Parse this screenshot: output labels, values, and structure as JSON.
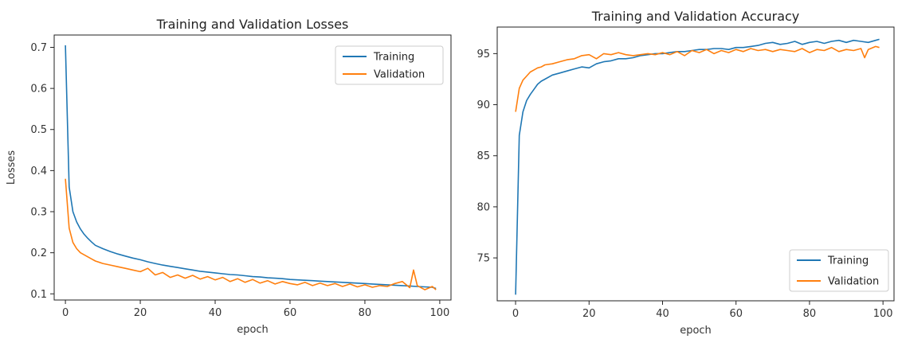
{
  "chart_data": [
    {
      "type": "line",
      "title": "Training and Validation Losses",
      "xlabel": "epoch",
      "ylabel": "Losses",
      "xlim": [
        -3,
        103
      ],
      "ylim": [
        0.085,
        0.73
      ],
      "xticks": [
        0,
        20,
        40,
        60,
        80,
        100
      ],
      "yticks": [
        0.1,
        0.2,
        0.3,
        0.4,
        0.5,
        0.6,
        0.7
      ],
      "ytick_labels": [
        "0.1",
        "0.2",
        "0.3",
        "0.4",
        "0.5",
        "0.6",
        "0.7"
      ],
      "legend_position": "top-right",
      "series": [
        {
          "name": "Training",
          "color": "#1f77b4",
          "x": [
            0,
            1,
            2,
            3,
            4,
            5,
            6,
            7,
            8,
            10,
            12,
            14,
            16,
            18,
            20,
            22,
            24,
            26,
            28,
            30,
            32,
            34,
            36,
            38,
            40,
            42,
            44,
            46,
            48,
            50,
            52,
            54,
            56,
            58,
            60,
            62,
            64,
            66,
            68,
            70,
            72,
            74,
            76,
            78,
            80,
            82,
            84,
            86,
            88,
            90,
            92,
            94,
            96,
            98,
            99
          ],
          "y": [
            0.705,
            0.36,
            0.3,
            0.275,
            0.258,
            0.245,
            0.235,
            0.226,
            0.218,
            0.21,
            0.203,
            0.197,
            0.192,
            0.187,
            0.183,
            0.178,
            0.174,
            0.17,
            0.167,
            0.164,
            0.161,
            0.158,
            0.155,
            0.153,
            0.151,
            0.149,
            0.147,
            0.146,
            0.144,
            0.142,
            0.141,
            0.139,
            0.138,
            0.137,
            0.135,
            0.134,
            0.133,
            0.132,
            0.131,
            0.13,
            0.129,
            0.128,
            0.127,
            0.126,
            0.125,
            0.124,
            0.123,
            0.122,
            0.121,
            0.12,
            0.119,
            0.118,
            0.117,
            0.116,
            0.113
          ]
        },
        {
          "name": "Validation",
          "color": "#ff7f0e",
          "x": [
            0,
            1,
            2,
            3,
            4,
            5,
            6,
            7,
            8,
            10,
            12,
            14,
            16,
            18,
            20,
            22,
            24,
            26,
            28,
            30,
            32,
            34,
            36,
            38,
            40,
            42,
            44,
            46,
            48,
            50,
            52,
            54,
            56,
            58,
            60,
            62,
            64,
            66,
            68,
            70,
            72,
            74,
            76,
            78,
            80,
            82,
            84,
            86,
            88,
            90,
            92,
            93,
            94,
            96,
            98,
            99
          ],
          "y": [
            0.38,
            0.26,
            0.225,
            0.21,
            0.2,
            0.195,
            0.19,
            0.185,
            0.18,
            0.174,
            0.17,
            0.166,
            0.162,
            0.158,
            0.154,
            0.162,
            0.146,
            0.152,
            0.14,
            0.146,
            0.138,
            0.145,
            0.136,
            0.142,
            0.134,
            0.14,
            0.13,
            0.137,
            0.128,
            0.135,
            0.126,
            0.132,
            0.124,
            0.13,
            0.125,
            0.122,
            0.128,
            0.12,
            0.126,
            0.12,
            0.125,
            0.118,
            0.124,
            0.117,
            0.122,
            0.116,
            0.12,
            0.118,
            0.125,
            0.13,
            0.115,
            0.158,
            0.12,
            0.11,
            0.118,
            0.11
          ]
        }
      ]
    },
    {
      "type": "line",
      "title": "Training and Validation Accuracy",
      "xlabel": "epoch",
      "ylabel": "",
      "xlim": [
        -5,
        103
      ],
      "ylim": [
        70.8,
        97.6
      ],
      "xticks": [
        0,
        20,
        40,
        60,
        80,
        100
      ],
      "yticks": [
        75,
        80,
        85,
        90,
        95
      ],
      "ytick_labels": [
        "75",
        "80",
        "85",
        "90",
        "95"
      ],
      "legend_position": "bottom-right",
      "series": [
        {
          "name": "Training",
          "color": "#1f77b4",
          "x": [
            0,
            1,
            2,
            3,
            4,
            5,
            6,
            7,
            8,
            10,
            12,
            14,
            16,
            18,
            20,
            22,
            24,
            26,
            28,
            30,
            32,
            34,
            36,
            38,
            40,
            42,
            44,
            46,
            48,
            50,
            52,
            54,
            56,
            58,
            60,
            62,
            64,
            66,
            68,
            70,
            72,
            74,
            76,
            78,
            80,
            82,
            84,
            86,
            88,
            90,
            92,
            94,
            96,
            98,
            99
          ],
          "y": [
            71.4,
            87.0,
            89.3,
            90.4,
            91.0,
            91.5,
            92.0,
            92.3,
            92.5,
            92.9,
            93.1,
            93.3,
            93.5,
            93.7,
            93.6,
            94.0,
            94.2,
            94.3,
            94.5,
            94.5,
            94.6,
            94.8,
            94.9,
            95.0,
            95.0,
            95.1,
            95.2,
            95.2,
            95.3,
            95.4,
            95.4,
            95.5,
            95.5,
            95.4,
            95.6,
            95.6,
            95.7,
            95.8,
            96.0,
            96.1,
            95.9,
            96.0,
            96.2,
            95.9,
            96.1,
            96.2,
            96.0,
            96.2,
            96.3,
            96.1,
            96.3,
            96.2,
            96.1,
            96.3,
            96.4
          ]
        },
        {
          "name": "Validation",
          "color": "#ff7f0e",
          "x": [
            0,
            1,
            2,
            3,
            4,
            5,
            6,
            7,
            8,
            10,
            12,
            14,
            16,
            18,
            20,
            22,
            24,
            26,
            28,
            30,
            32,
            34,
            36,
            38,
            40,
            42,
            44,
            46,
            48,
            50,
            52,
            54,
            56,
            58,
            60,
            62,
            64,
            66,
            68,
            70,
            72,
            74,
            76,
            78,
            80,
            82,
            84,
            86,
            88,
            90,
            92,
            94,
            95,
            96,
            98,
            99
          ],
          "y": [
            89.3,
            91.6,
            92.4,
            92.8,
            93.2,
            93.4,
            93.6,
            93.7,
            93.9,
            94.0,
            94.2,
            94.4,
            94.5,
            94.8,
            94.9,
            94.5,
            95.0,
            94.9,
            95.1,
            94.9,
            94.8,
            94.9,
            95.0,
            94.9,
            95.1,
            94.9,
            95.2,
            94.8,
            95.3,
            95.1,
            95.4,
            95.0,
            95.3,
            95.1,
            95.4,
            95.2,
            95.5,
            95.3,
            95.4,
            95.2,
            95.4,
            95.3,
            95.2,
            95.5,
            95.1,
            95.4,
            95.3,
            95.6,
            95.2,
            95.4,
            95.3,
            95.5,
            94.6,
            95.4,
            95.7,
            95.6
          ]
        }
      ]
    }
  ]
}
